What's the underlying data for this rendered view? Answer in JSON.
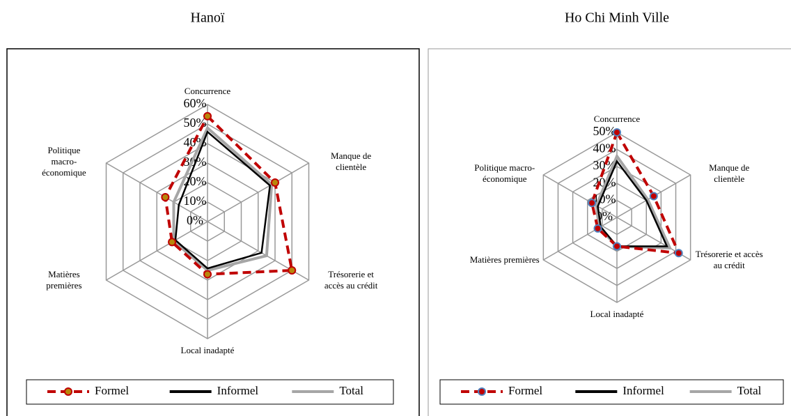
{
  "chart_data": [
    {
      "type": "radar",
      "title": "Hanoï",
      "categories": [
        [
          "Concurrence"
        ],
        [
          "Manque de",
          "clientèle"
        ],
        [
          "Trésorerie et",
          "accès au crédit"
        ],
        [
          "Local inadapté"
        ],
        [
          "Matières",
          "premières"
        ],
        [
          "Politique",
          "macro-",
          "économique"
        ]
      ],
      "rlim": [
        0,
        60
      ],
      "rticks": [
        {
          "value": 0,
          "label": "0%"
        },
        {
          "value": 10,
          "label": "10%"
        },
        {
          "value": 20,
          "label": "20%"
        },
        {
          "value": 30,
          "label": "30%"
        },
        {
          "value": 40,
          "label": "40%"
        },
        {
          "value": 50,
          "label": "50%"
        },
        {
          "value": 60,
          "label": "60%"
        }
      ],
      "series": [
        {
          "name": "Formel",
          "color": "#c00000",
          "dashed": true,
          "marker_color": "#b8860b",
          "values": [
            54,
            40,
            50,
            27,
            21,
            25
          ]
        },
        {
          "name": "Informel",
          "color": "#000000",
          "dashed": false,
          "values": [
            46,
            37,
            32,
            24,
            19,
            17
          ]
        },
        {
          "name": "Total",
          "color": "#a6a6a6",
          "dashed": false,
          "values": [
            48,
            38,
            35,
            25,
            20,
            20
          ]
        }
      ]
    },
    {
      "type": "radar",
      "title": "Ho Chi Minh Ville",
      "categories": [
        [
          "Concurrence"
        ],
        [
          "Manque de",
          "clientèle"
        ],
        [
          "Trésorerie et accès",
          "au crédit"
        ],
        [
          "Local inadapté"
        ],
        [
          "Matières premières"
        ],
        [
          "Politique macro-",
          "économique"
        ]
      ],
      "rlim": [
        0,
        50
      ],
      "rticks": [
        {
          "value": 0,
          "label": "0%"
        },
        {
          "value": 10,
          "label": "10%"
        },
        {
          "value": 20,
          "label": "20%"
        },
        {
          "value": 30,
          "label": "30%"
        },
        {
          "value": 40,
          "label": "40%"
        },
        {
          "value": 50,
          "label": "50%"
        }
      ],
      "series": [
        {
          "name": "Formel",
          "color": "#c00000",
          "dashed": true,
          "marker_color": "#4f81bd",
          "values": [
            50,
            25,
            42,
            17,
            13,
            17
          ]
        },
        {
          "name": "Informel",
          "color": "#000000",
          "dashed": false,
          "values": [
            33,
            20,
            34,
            17,
            11,
            13
          ]
        },
        {
          "name": "Total",
          "color": "#a6a6a6",
          "dashed": false,
          "values": [
            36,
            21,
            36,
            17,
            12,
            14
          ]
        }
      ]
    }
  ]
}
